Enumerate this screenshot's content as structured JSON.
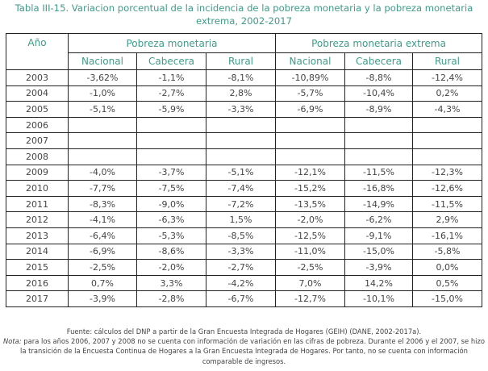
{
  "title": "Tabla III-15. Variacion porcentual de la incidencia de la pobreza monetaria y la pobreza monetaria extrema, 2002-2017",
  "header": {
    "year": "Año",
    "group1": "Pobreza monetaria",
    "group2": "Pobreza monetaria extrema",
    "subcols": [
      "Nacional",
      "Cabecera",
      "Rural",
      "Nacional",
      "Cabecera",
      "Rural"
    ]
  },
  "rows": [
    [
      "2003",
      "-3,62%",
      "-1,1%",
      "-8,1%",
      "-10,89%",
      "-8,8%",
      "-12,4%"
    ],
    [
      "2004",
      "-1,0%",
      "-2,7%",
      "2,8%",
      "-5,7%",
      "-10,4%",
      "0,2%"
    ],
    [
      "2005",
      "-5,1%",
      "-5,9%",
      "-3,3%",
      "-6,9%",
      "-8,9%",
      "-4,3%"
    ],
    [
      "2006",
      "",
      "",
      "",
      "",
      "",
      ""
    ],
    [
      "2007",
      "",
      "",
      "",
      "",
      "",
      ""
    ],
    [
      "2008",
      "",
      "",
      "",
      "",
      "",
      ""
    ],
    [
      "2009",
      "-4,0%",
      "-3,7%",
      "-5,1%",
      "-12,1%",
      "-11,5%",
      "-12,3%"
    ],
    [
      "2010",
      "-7,7%",
      "-7,5%",
      "-7,4%",
      "-15,2%",
      "-16,8%",
      "-12,6%"
    ],
    [
      "2011",
      "-8,3%",
      "-9,0%",
      "-7,2%",
      "-13,5%",
      "-14,9%",
      "-11,5%"
    ],
    [
      "2012",
      "-4,1%",
      "-6,3%",
      "1,5%",
      "-2,0%",
      "-6,2%",
      "2,9%"
    ],
    [
      "2013",
      "-6,4%",
      "-5,3%",
      "-8,5%",
      "-12,5%",
      "-9,1%",
      "-16,1%"
    ],
    [
      "2014",
      "-6,9%",
      "-8,6%",
      "-3,3%",
      "-11,0%",
      "-15,0%",
      "-5,8%"
    ],
    [
      "2015",
      "-2,5%",
      "-2,0%",
      "-2,7%",
      "-2,5%",
      "-3,9%",
      "0,0%"
    ],
    [
      "2016",
      "0,7%",
      "3,3%",
      "-4,2%",
      "7,0%",
      "14,2%",
      "0,5%"
    ],
    [
      "2017",
      "-3,9%",
      "-2,8%",
      "-6,7%",
      "-12,7%",
      "-10,1%",
      "-15,0%"
    ]
  ],
  "footer": {
    "source": "Fuente: cálculos del DNP a partir de la Gran Encuesta Integrada de Hogares (GEIH) (DANE, 2002-2017a).",
    "note_label": "Nota:",
    "note_text": " para los años 2006, 2007 y 2008 no se cuenta con información de variación en las cifras de pobreza. Durante el 2006 y el 2007, se hizo la transición de la Encuesta Continua de Hogares a la Gran Encuesta Integrada de Hogares. Por tanto, no se cuenta con información comparable de ingresos."
  }
}
